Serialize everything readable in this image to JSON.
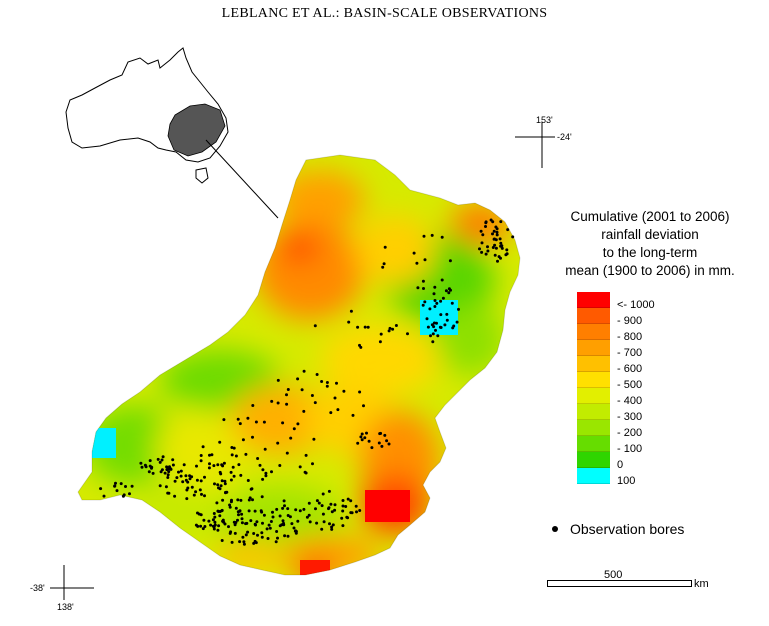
{
  "header": {
    "title": "LEBLANC ET AL.: BASIN-SCALE OBSERVATIONS"
  },
  "legend": {
    "title_lines": [
      "Cumulative (2001 to 2006)",
      "rainfall deviation",
      "to the long-term",
      "mean (1900 to 2006) in mm."
    ],
    "classes": [
      {
        "label": "<- 1000",
        "color": "#ff0000"
      },
      {
        "label": "- 900",
        "color": "#ff5a00"
      },
      {
        "label": "- 800",
        "color": "#ff7f00"
      },
      {
        "label": "- 700",
        "color": "#ff9f00"
      },
      {
        "label": "- 600",
        "color": "#ffc000"
      },
      {
        "label": "- 500",
        "color": "#ffe000"
      },
      {
        "label": "- 400",
        "color": "#e2ef00"
      },
      {
        "label": "- 300",
        "color": "#c2ec00"
      },
      {
        "label": "- 200",
        "color": "#9ae600"
      },
      {
        "label": "- 100",
        "color": "#66dd00"
      },
      {
        "label": "0",
        "color": "#2fd500"
      },
      {
        "label": "100",
        "color": "#00ffff"
      }
    ]
  },
  "bores_legend": {
    "label": "Observation bores"
  },
  "scale": {
    "value": "500",
    "unit": "km"
  },
  "coords": {
    "lon_east": "153'",
    "lat_north": "-24'",
    "lat_south": "-38'",
    "lon_west": "138'"
  }
}
